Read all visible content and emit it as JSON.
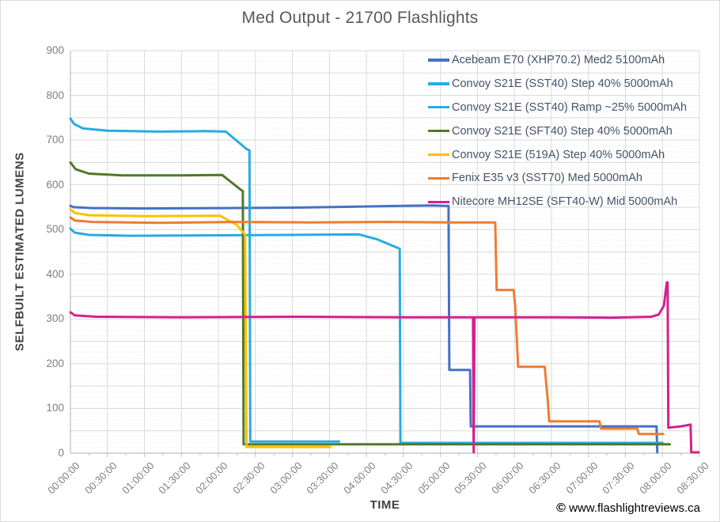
{
  "page": {
    "watermark_symbol": "©",
    "watermark_text": " www.flashlightreviews.ca"
  },
  "chart_data": {
    "type": "line",
    "title": "Med Output - 21700 Flashlights",
    "xlabel": "TIME",
    "ylabel": "SELFBUILT ESTIMATED LUMENS",
    "x_unit": "hours",
    "xlim": [
      0,
      8.5
    ],
    "ylim": [
      0,
      900
    ],
    "grid": "on",
    "legend_position": "top-right-inside",
    "colors": {
      "title_text": "#595959",
      "axis_title_text": "#404040",
      "tick_label_text": "#7f7f7f",
      "legend_text": "#44546A",
      "axis_line": "#bfbfbf",
      "grid_major": "#d9d9d9",
      "grid_minor": "#efeaea"
    },
    "x_ticks": [
      "00:00:00",
      "00:30:00",
      "01:00:00",
      "01:30:00",
      "02:00:00",
      "02:30:00",
      "03:00:00",
      "03:30:00",
      "04:00:00",
      "04:30:00",
      "05:00:00",
      "05:30:00",
      "06:00:00",
      "06:30:00",
      "07:00:00",
      "07:30:00",
      "08:00:00",
      "08:30:00"
    ],
    "x_tick_hours": [
      0,
      0.5,
      1,
      1.5,
      2,
      2.5,
      3,
      3.5,
      4,
      4.5,
      5,
      5.5,
      6,
      6.5,
      7,
      7.5,
      8,
      8.5
    ],
    "y_ticks": [
      0,
      100,
      200,
      300,
      400,
      500,
      600,
      700,
      800,
      900
    ],
    "series": [
      {
        "name": "Acebeam E70 (XHP70.2) Med2 5100mAh",
        "color": "#4472C4",
        "points": [
          [
            0,
            553
          ],
          [
            0.04,
            550
          ],
          [
            0.3,
            548
          ],
          [
            1.0,
            547
          ],
          [
            2.0,
            548
          ],
          [
            3.0,
            549
          ],
          [
            3.8,
            551
          ],
          [
            4.5,
            553
          ],
          [
            4.9,
            554
          ],
          [
            5.05,
            553
          ],
          [
            5.11,
            553
          ],
          [
            5.12,
            186
          ],
          [
            5.4,
            186
          ],
          [
            5.41,
            60
          ],
          [
            7.92,
            60
          ],
          [
            7.93,
            2
          ]
        ]
      },
      {
        "name": "Convoy S21E (SST40) Step 40% 5000mAh",
        "color": "#29ABE2",
        "points": [
          [
            0,
            748
          ],
          [
            0.05,
            736
          ],
          [
            0.17,
            726
          ],
          [
            0.5,
            721
          ],
          [
            1.2,
            719
          ],
          [
            1.8,
            720
          ],
          [
            2.1,
            719
          ],
          [
            2.38,
            680
          ],
          [
            2.42,
            677
          ],
          [
            2.43,
            26
          ],
          [
            3.63,
            26
          ]
        ]
      },
      {
        "name": "Convoy S21E (SST40) Ramp ~25% 5000mAh",
        "color": "#29ABE2",
        "points": [
          [
            0,
            502
          ],
          [
            0.06,
            493
          ],
          [
            0.25,
            488
          ],
          [
            0.8,
            486
          ],
          [
            1.8,
            487
          ],
          [
            3.0,
            488
          ],
          [
            3.9,
            489
          ],
          [
            4.15,
            478
          ],
          [
            4.45,
            457
          ],
          [
            4.46,
            23
          ],
          [
            8.0,
            23
          ]
        ]
      },
      {
        "name": "Convoy S21E (SFT40) Step 40% 5000mAh",
        "color": "#4F7A28",
        "points": [
          [
            0,
            650
          ],
          [
            0.07,
            635
          ],
          [
            0.25,
            625
          ],
          [
            0.7,
            621
          ],
          [
            1.5,
            621
          ],
          [
            2.05,
            622
          ],
          [
            2.31,
            588
          ],
          [
            2.33,
            586
          ],
          [
            2.34,
            20
          ],
          [
            8.1,
            20
          ]
        ]
      },
      {
        "name": "Convoy S21E (519A) Step 40% 5000mAh",
        "color": "#FFC000",
        "points": [
          [
            0,
            545
          ],
          [
            0.06,
            537
          ],
          [
            0.25,
            532
          ],
          [
            1.0,
            530
          ],
          [
            2.02,
            531
          ],
          [
            2.25,
            510
          ],
          [
            2.36,
            489
          ],
          [
            2.38,
            14
          ],
          [
            3.51,
            14
          ]
        ]
      },
      {
        "name": "Fenix E35 v3 (SST70) Med 5000mAh",
        "color": "#ED7D31",
        "points": [
          [
            0,
            527
          ],
          [
            0.06,
            520
          ],
          [
            0.3,
            517
          ],
          [
            1.2,
            515
          ],
          [
            2.2,
            517
          ],
          [
            3.2,
            516
          ],
          [
            4.2,
            517
          ],
          [
            5.2,
            516
          ],
          [
            5.74,
            516
          ],
          [
            5.76,
            365
          ],
          [
            5.99,
            365
          ],
          [
            6.01,
            330
          ],
          [
            6.05,
            193
          ],
          [
            6.41,
            193
          ],
          [
            6.43,
            155
          ],
          [
            6.45,
            120
          ],
          [
            6.47,
            71
          ],
          [
            7.15,
            71
          ],
          [
            7.17,
            55
          ],
          [
            7.66,
            55
          ],
          [
            7.68,
            43
          ],
          [
            8.01,
            43
          ]
        ]
      },
      {
        "name": "Nitecore MH12SE (SFT40-W) Mid 5000mAh",
        "color": "#D5218C",
        "points": [
          [
            0,
            315
          ],
          [
            0.06,
            308
          ],
          [
            0.35,
            305
          ],
          [
            1.5,
            304
          ],
          [
            3.0,
            305
          ],
          [
            4.5,
            304
          ],
          [
            5.44,
            304
          ],
          [
            5.45,
            2
          ],
          [
            5.46,
            304
          ],
          [
            6.5,
            304
          ],
          [
            7.3,
            303
          ],
          [
            7.85,
            305
          ],
          [
            7.95,
            310
          ],
          [
            8.02,
            330
          ],
          [
            8.06,
            382
          ],
          [
            8.07,
            382
          ],
          [
            8.08,
            57
          ],
          [
            8.25,
            60
          ],
          [
            8.38,
            64
          ],
          [
            8.39,
            2
          ],
          [
            8.49,
            2
          ]
        ]
      }
    ]
  }
}
